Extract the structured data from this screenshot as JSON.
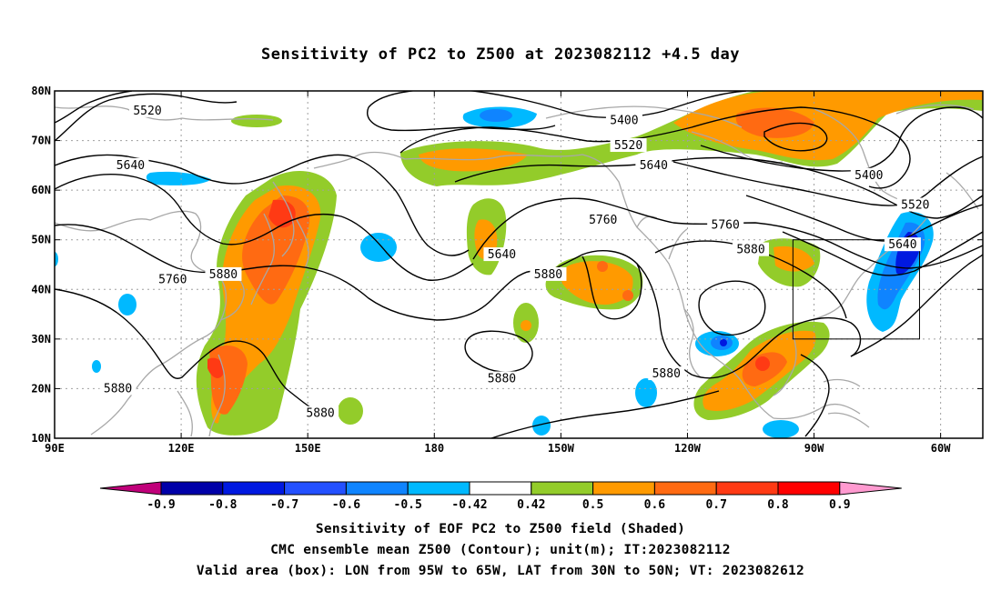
{
  "title": "Sensitivity of PC2 to Z500 at 2023082112 +4.5 day",
  "captions": [
    "Sensitivity of EOF PC2 to Z500 field (Shaded)",
    "CMC ensemble mean Z500 (Contour); unit(m); IT:2023082112",
    "Valid area (box): LON from 95W to 65W, LAT from 30N to 50N; VT: 2023082612"
  ],
  "map": {
    "lon_range": [
      "90E",
      "310E"
    ],
    "lat_range": [
      "10N",
      "80N"
    ],
    "lon_ticks": [
      {
        "lon": 90,
        "label": "90E"
      },
      {
        "lon": 120,
        "label": "120E"
      },
      {
        "lon": 150,
        "label": "150E"
      },
      {
        "lon": 180,
        "label": "180"
      },
      {
        "lon": 210,
        "label": "150W"
      },
      {
        "lon": 240,
        "label": "120W"
      },
      {
        "lon": 270,
        "label": "90W"
      },
      {
        "lon": 300,
        "label": "60W"
      }
    ],
    "lat_ticks": [
      {
        "lat": 80,
        "label": "80N"
      },
      {
        "lat": 70,
        "label": "70N"
      },
      {
        "lat": 60,
        "label": "60N"
      },
      {
        "lat": 50,
        "label": "50N"
      },
      {
        "lat": 40,
        "label": "40N"
      },
      {
        "lat": 30,
        "label": "30N"
      },
      {
        "lat": 20,
        "label": "20N"
      },
      {
        "lat": 10,
        "label": "10N"
      }
    ],
    "valid_box": {
      "lon_min": 265,
      "lon_max": 295,
      "lat_min": 30,
      "lat_max": 50
    },
    "contour_labels": [
      {
        "text": "5520",
        "lon": 112,
        "lat": 76
      },
      {
        "text": "5640",
        "lon": 108,
        "lat": 65
      },
      {
        "text": "5760",
        "lon": 118,
        "lat": 42
      },
      {
        "text": "5880",
        "lon": 130,
        "lat": 43
      },
      {
        "text": "5880",
        "lon": 105,
        "lat": 20
      },
      {
        "text": "5880",
        "lon": 153,
        "lat": 15
      },
      {
        "text": "5640",
        "lon": 196,
        "lat": 47
      },
      {
        "text": "5880",
        "lon": 207,
        "lat": 43
      },
      {
        "text": "5760",
        "lon": 220,
        "lat": 54
      },
      {
        "text": "5880",
        "lon": 196,
        "lat": 22
      },
      {
        "text": "5400",
        "lon": 225,
        "lat": 74
      },
      {
        "text": "5520",
        "lon": 226,
        "lat": 69
      },
      {
        "text": "5640",
        "lon": 232,
        "lat": 65
      },
      {
        "text": "5760",
        "lon": 249,
        "lat": 53
      },
      {
        "text": "5880",
        "lon": 255,
        "lat": 48
      },
      {
        "text": "5880",
        "lon": 235,
        "lat": 23
      },
      {
        "text": "5400",
        "lon": 283,
        "lat": 63
      },
      {
        "text": "5520",
        "lon": 294,
        "lat": 57
      },
      {
        "text": "5640",
        "lon": 291,
        "lat": 49
      }
    ]
  },
  "colorbar": {
    "labels": [
      "-0.9",
      "-0.8",
      "-0.7",
      "-0.6",
      "-0.5",
      "-0.42",
      "0.42",
      "0.5",
      "0.6",
      "0.7",
      "0.8",
      "0.9"
    ],
    "colors": [
      "#0000a8",
      "#0019e0",
      "#2350ff",
      "#0f84ff",
      "#00b9ff",
      "#ffffff",
      "#93cc2a",
      "#ff9a00",
      "#ff6a12",
      "#ff3a14",
      "#ff0000"
    ],
    "under_color": "#c0007a",
    "over_color": "#ff9ad0"
  },
  "colors": {
    "positive_low": "#93cc2a",
    "positive_mid": "#ff9a00",
    "positive_high": "#ff6a12",
    "positive_peak": "#ff3a14",
    "negative_low": "#00b9ff",
    "negative_mid": "#0f84ff",
    "negative_high": "#0019e0",
    "coastline": "#a8a8a8",
    "contour": "#000000"
  }
}
